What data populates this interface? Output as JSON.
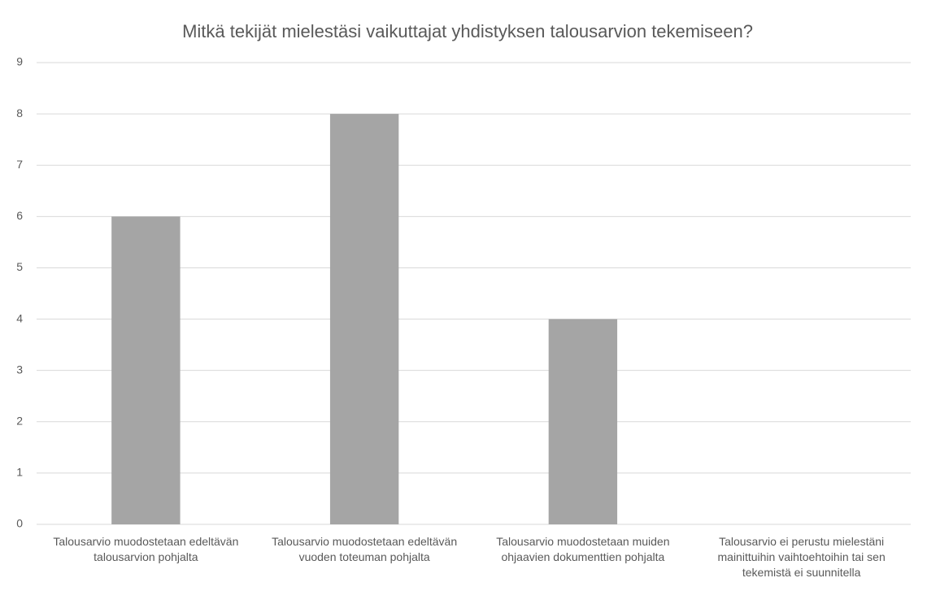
{
  "chart_data": {
    "type": "bar",
    "title": "Mitkä tekijät mielestäsi vaikuttajat yhdistyksen talousarvion tekemiseen?",
    "categories": [
      "Talousarvio muodostetaan edeltävän talousarvion pohjalta",
      "Talousarvio muodostetaan edeltävän vuoden toteuman pohjalta",
      "Talousarvio muodostetaan muiden ohjaavien dokumenttien pohjalta",
      "Talousarvio ei perustu mielestäni mainittuihin vaihtoehtoihin tai sen tekemistä ei suunnitella"
    ],
    "values": [
      6,
      8,
      4,
      0
    ],
    "color": "#a5a5a5",
    "ylim": [
      0,
      9
    ],
    "yticks": [
      0,
      1,
      2,
      3,
      4,
      5,
      6,
      7,
      8,
      9
    ],
    "grid": true
  }
}
